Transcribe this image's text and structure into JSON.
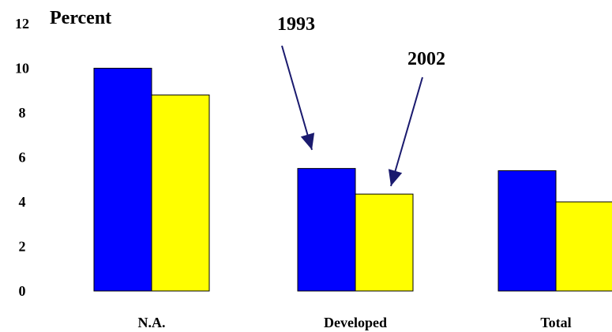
{
  "chart_data": {
    "type": "bar",
    "ylabel": "Percent",
    "ylim": [
      0,
      12
    ],
    "yticks": [
      0,
      2,
      4,
      6,
      8,
      10,
      12
    ],
    "categories": [
      "N.A.",
      "Developed",
      "Total"
    ],
    "series": [
      {
        "name": "1993",
        "color": "#0000ff",
        "values": [
          10.0,
          5.5,
          5.4
        ]
      },
      {
        "name": "2002",
        "color": "#ffff00",
        "values": [
          8.8,
          4.35,
          4.0
        ]
      }
    ],
    "grid": false,
    "legend": "annotation-arrows"
  },
  "colors": {
    "bar_outline": "#000000",
    "arrow": "#1a1a6e"
  }
}
